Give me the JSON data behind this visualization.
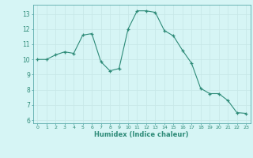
{
  "x": [
    0,
    1,
    2,
    3,
    4,
    5,
    6,
    7,
    8,
    9,
    10,
    11,
    12,
    13,
    14,
    15,
    16,
    17,
    18,
    19,
    20,
    21,
    22,
    23
  ],
  "y": [
    10.0,
    10.0,
    10.3,
    10.5,
    10.4,
    11.6,
    11.7,
    9.85,
    9.25,
    9.4,
    12.0,
    13.2,
    13.2,
    13.1,
    11.9,
    11.55,
    10.6,
    9.75,
    8.1,
    7.75,
    7.75,
    7.3,
    6.5,
    6.45
  ],
  "xlabel": "Humidex (Indice chaleur)",
  "ylim": [
    5.8,
    13.6
  ],
  "xlim": [
    -0.5,
    23.5
  ],
  "yticks": [
    6,
    7,
    8,
    9,
    10,
    11,
    12,
    13
  ],
  "xticks": [
    0,
    1,
    2,
    3,
    4,
    5,
    6,
    7,
    8,
    9,
    10,
    11,
    12,
    13,
    14,
    15,
    16,
    17,
    18,
    19,
    20,
    21,
    22,
    23
  ],
  "line_color": "#2e8b78",
  "marker": "+",
  "bg_color": "#d6f5f5",
  "grid_color": "#c8e8e8",
  "spine_color": "#5aaaaa"
}
